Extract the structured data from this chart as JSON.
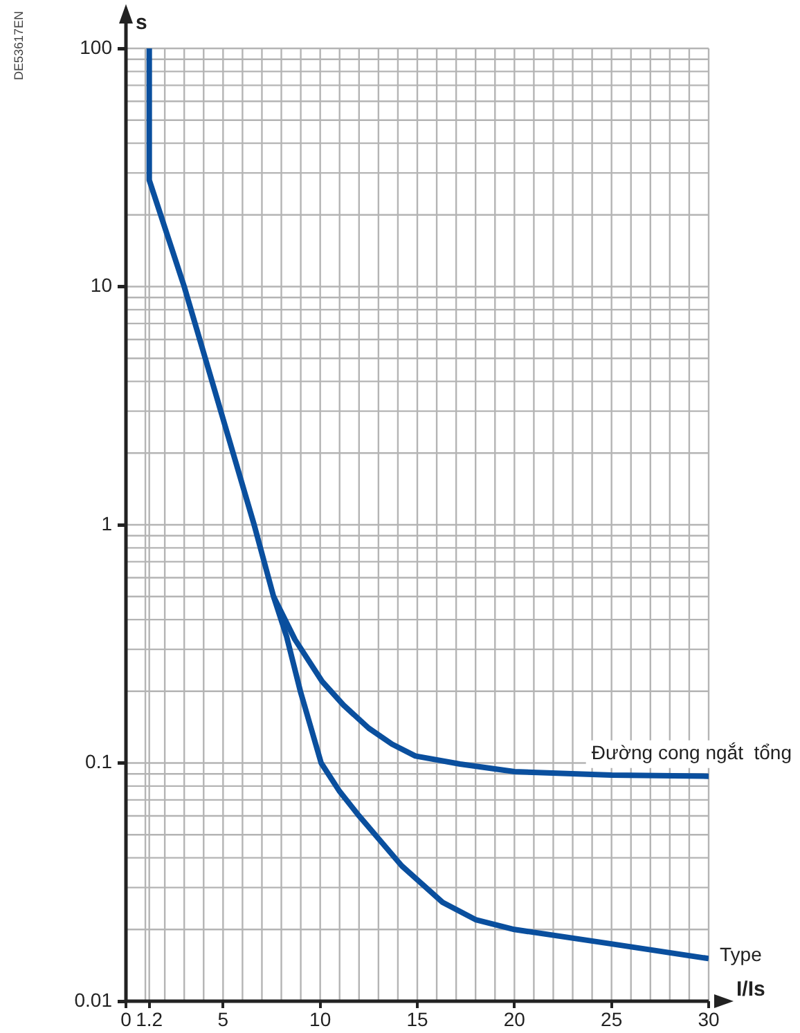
{
  "chart_data": {
    "type": "line",
    "xlabel": "I/Is",
    "ylabel": "s",
    "annotations": [
      "DE53617EN"
    ],
    "series": [
      {
        "name": "Type",
        "color": "#0a4f9e",
        "x": [
          1.2,
          1.2,
          3,
          6.6,
          7.6,
          8.27,
          8.98,
          10.05,
          11,
          12,
          14.2,
          16.3,
          18,
          20,
          25,
          30
        ],
        "values": [
          100,
          28,
          10,
          1,
          0.5,
          0.34,
          0.2,
          0.1,
          0.076,
          0.06,
          0.037,
          0.026,
          0.022,
          0.02,
          0.0174,
          0.0151
        ]
      },
      {
        "name": "Đường cong ngắt  tổng",
        "color": "#0a4f9e",
        "x": [
          7.6,
          8.7,
          10.1,
          11.2,
          12.5,
          13.7,
          14.9,
          17.2,
          20,
          25,
          30
        ],
        "values": [
          0.5,
          0.33,
          0.22,
          0.175,
          0.14,
          0.12,
          0.107,
          0.099,
          0.092,
          0.089,
          0.088
        ]
      }
    ],
    "xlim": [
      0,
      30
    ],
    "xticks": [
      0,
      1.2,
      5,
      10,
      15,
      20,
      25,
      30
    ],
    "ylim": [
      0.01,
      100
    ],
    "yticks": [
      0.01,
      0.1,
      1,
      10,
      100
    ],
    "log": "y",
    "grid": true,
    "legend": false,
    "marker": "none",
    "line_style": "solid"
  }
}
